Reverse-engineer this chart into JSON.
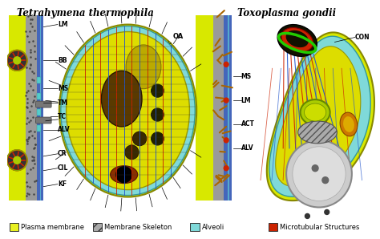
{
  "title": "Tetrahymena thermophila",
  "title2": "Toxoplasma gondii",
  "background_color": "#ffffff",
  "legend_items": [
    {
      "label": "Plasma membrane",
      "color": "#e8f020"
    },
    {
      "label": "Membrane Skeleton",
      "color": "#888888",
      "hatch": true
    },
    {
      "label": "Alveoli",
      "color": "#7fd9d9"
    },
    {
      "label": "Microtubular Structures",
      "color": "#cc2200"
    }
  ],
  "fig_width": 4.74,
  "fig_height": 2.98,
  "dpi": 100
}
